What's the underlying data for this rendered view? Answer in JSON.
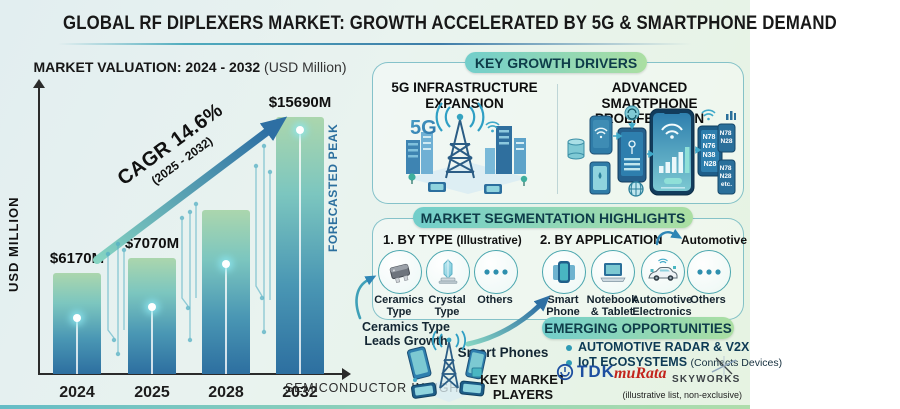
{
  "title": "GLOBAL RF DIPLEXERS MARKET: GROWTH ACCELERATED BY 5G & SMARTPHONE DEMAND",
  "source": "SEMICONDUCTOR INSIGHT",
  "colors": {
    "teal": "#4ab0bd",
    "green": "#a9dfa2",
    "steel_blue": "#2d6fa3",
    "navy": "#0e3c49",
    "bar_top": "#abd6ad",
    "bar_bottom": "#2d6fa0",
    "tdk_blue": "#1e4fa0",
    "murata_red": "#c3251d",
    "skyworks_gray": "#3c4146"
  },
  "chart": {
    "heading": "MARKET VALUATION: 2024 - 2032",
    "heading_note": "(USD Million)",
    "cagr": "CAGR 14.6%",
    "cagr_period": "(2025 - 2032)",
    "forecast_peak": "FORECASTED PEAK"
  },
  "chart_data": {
    "type": "bar",
    "title": "MARKET VALUATION: 2024 - 2032 (USD Million)",
    "xlabel": "",
    "ylabel": "USD MILLION",
    "categories": [
      "2024",
      "2025",
      "2028",
      "2032"
    ],
    "values": [
      6170,
      7070,
      10000,
      15690
    ],
    "value_labels": [
      "$6170M",
      "$7070M",
      "",
      "$15690M"
    ],
    "unit": "USD Million",
    "cagr_percent": 14.6,
    "cagr_period": "2025 - 2032",
    "ylim": [
      0,
      16500
    ],
    "grid": false,
    "legend": false
  },
  "growth_drivers": {
    "header": "KEY GROWTH DRIVERS",
    "driver1": {
      "line1": "5G INFRASTRUCTURE",
      "line2": "EXPANSION",
      "badge": "5G"
    },
    "driver2": {
      "line1": "ADVANCED SMARTPHONE",
      "line2": "PROLIFERATION",
      "bands_main": [
        "N78",
        "N76",
        "N38",
        "N28"
      ],
      "bands_top": [
        "N78",
        "N28"
      ],
      "bands_bottom": [
        "N78",
        "N28",
        "etc."
      ]
    }
  },
  "segmentation": {
    "header": "MARKET SEGMENTATION HIGHLIGHTS",
    "by_type": {
      "title": "1. BY TYPE",
      "note": "(Illustrative)",
      "items": [
        {
          "line1": "Ceramics",
          "line2": "Type"
        },
        {
          "line1": "Crystal",
          "line2": "Type"
        },
        {
          "line1": "Others",
          "line2": ""
        }
      ]
    },
    "by_application": {
      "title": "2. BY APPLICATION",
      "callout": "Automotive",
      "items": [
        {
          "line1": "Smart",
          "line2": "Phone"
        },
        {
          "line1": "Notebook",
          "line2": "& Tablet"
        },
        {
          "line1": "Automotive",
          "line2": "Electronics"
        },
        {
          "line1": "Others",
          "line2": ""
        }
      ]
    },
    "annotation_type": {
      "line1": "Ceramics Type",
      "line2": "Leads Growth"
    },
    "annotation_application": "Smart Phones"
  },
  "opportunities": {
    "header": "EMERGING OPPORTUNITIES",
    "items": [
      {
        "text": "AUTOMOTIVE RADAR & V2X",
        "note": ""
      },
      {
        "text": "IoT ECOSYSTEMS",
        "note": "(Connects Devices)"
      }
    ]
  },
  "players": {
    "label1": "KEY MARKET",
    "label2": "PLAYERS",
    "logos": [
      {
        "name": "TDK"
      },
      {
        "name": "muRata"
      },
      {
        "name": "SKYWORKS"
      }
    ],
    "note": "(illustrative list, non-exclusive)"
  }
}
